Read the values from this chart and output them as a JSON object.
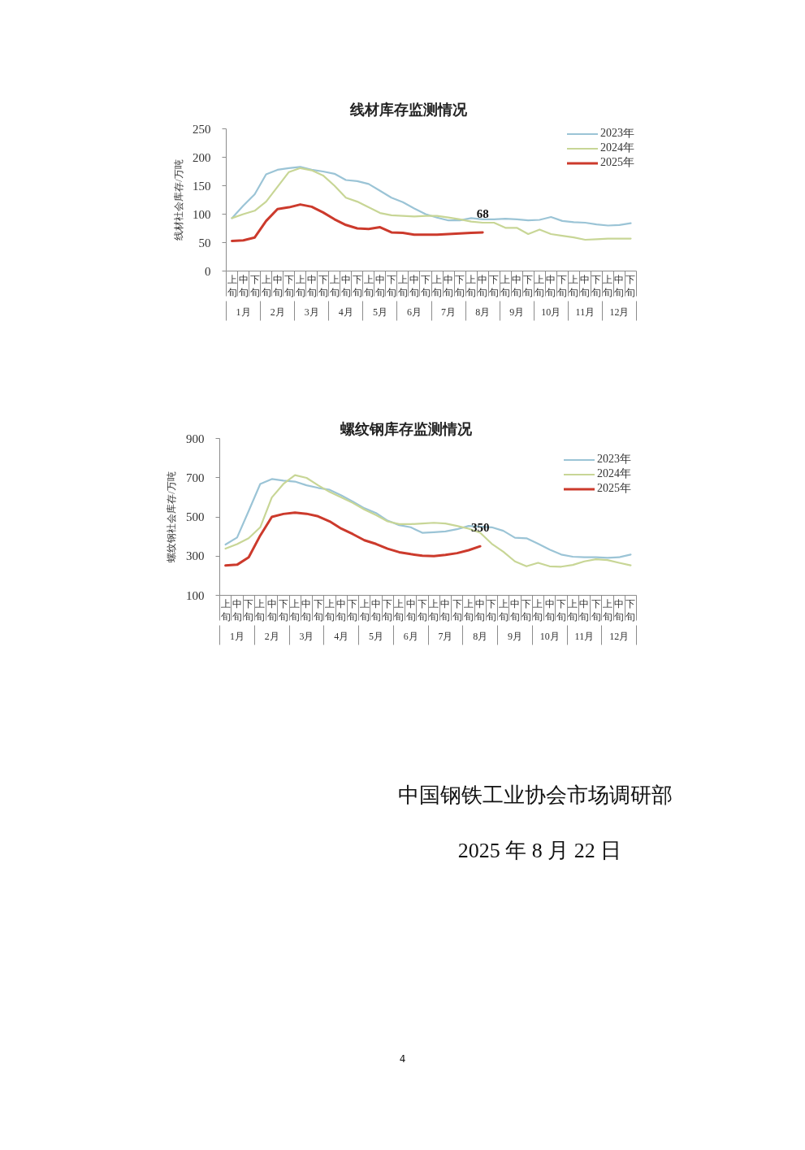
{
  "chart_data": [
    {
      "type": "line",
      "title": "线材库存监测情况",
      "ylabel": "线材社会库存/万吨",
      "categories": [
        [
          "1月",
          "上旬"
        ],
        [
          null,
          "中旬"
        ],
        [
          null,
          "下旬"
        ],
        [
          "2月",
          "上旬"
        ],
        [
          null,
          "中旬"
        ],
        [
          null,
          "下旬"
        ],
        [
          "3月",
          "上旬"
        ],
        [
          null,
          "中旬"
        ],
        [
          null,
          "下旬"
        ],
        [
          "4月",
          "上旬"
        ],
        [
          null,
          "中旬"
        ],
        [
          null,
          "下旬"
        ],
        [
          "5月",
          "上旬"
        ],
        [
          null,
          "中旬"
        ],
        [
          null,
          "下旬"
        ],
        [
          "6月",
          "上旬"
        ],
        [
          null,
          "中旬"
        ],
        [
          null,
          "下旬"
        ],
        [
          "7月",
          "上旬"
        ],
        [
          null,
          "中旬"
        ],
        [
          null,
          "下旬"
        ],
        [
          "8月",
          "上旬"
        ],
        [
          null,
          "中旬"
        ],
        [
          null,
          "下旬"
        ],
        [
          "9月",
          "上旬"
        ],
        [
          null,
          "中旬"
        ],
        [
          null,
          "下旬"
        ],
        [
          "10月",
          "上旬"
        ],
        [
          null,
          "中旬"
        ],
        [
          null,
          "下旬"
        ],
        [
          "11月",
          "上旬"
        ],
        [
          null,
          "中旬"
        ],
        [
          null,
          "下旬"
        ],
        [
          "12月",
          "上旬"
        ],
        [
          null,
          "中旬"
        ],
        [
          null,
          "下旬"
        ]
      ],
      "series": [
        {
          "name": "2023年",
          "color": "#9bc4d6",
          "values": [
            93,
            115,
            135,
            170,
            178,
            181,
            183,
            178,
            175,
            171,
            160,
            158,
            153,
            141,
            129,
            121,
            110,
            100,
            94,
            89,
            89,
            93,
            91,
            91,
            92,
            91,
            89,
            90,
            95,
            88,
            86,
            85,
            82,
            80,
            81,
            84
          ]
        },
        {
          "name": "2024年",
          "color": "#c8d696",
          "values": [
            93,
            100,
            106,
            122,
            148,
            174,
            181,
            177,
            168,
            150,
            129,
            122,
            112,
            102,
            98,
            97,
            96,
            97,
            97,
            94,
            91,
            87,
            85,
            85,
            76,
            76,
            65,
            73,
            65,
            62,
            59,
            55,
            56,
            57,
            57,
            57
          ]
        },
        {
          "name": "2025年",
          "color": "#cc3a2c",
          "values": [
            53,
            54,
            59,
            88,
            109,
            112,
            117,
            113,
            103,
            91,
            81,
            75,
            74,
            77,
            68,
            67,
            64,
            64,
            64,
            65,
            66,
            67,
            68,
            null,
            null,
            null,
            null,
            null,
            null,
            null,
            null,
            null,
            null,
            null,
            null,
            null
          ],
          "value_labels": [
            null,
            null,
            null,
            null,
            null,
            null,
            null,
            null,
            null,
            null,
            null,
            null,
            null,
            null,
            null,
            null,
            null,
            null,
            null,
            null,
            null,
            null,
            "68",
            null,
            null,
            null,
            null,
            null,
            null,
            null,
            null,
            null,
            null,
            null,
            null,
            null
          ]
        }
      ],
      "ylim": [
        0,
        250
      ],
      "yticks": [
        0,
        50,
        100,
        150,
        200,
        250
      ],
      "legend": "top right"
    },
    {
      "type": "line",
      "title": "螺纹钢库存监测情况",
      "ylabel": "螺纹钢社会库存/万吨",
      "categories": [
        [
          "1月",
          "上旬"
        ],
        [
          null,
          "中旬"
        ],
        [
          null,
          "下旬"
        ],
        [
          "2月",
          "上旬"
        ],
        [
          null,
          "中旬"
        ],
        [
          null,
          "下旬"
        ],
        [
          "3月",
          "上旬"
        ],
        [
          null,
          "中旬"
        ],
        [
          null,
          "下旬"
        ],
        [
          "4月",
          "上旬"
        ],
        [
          null,
          "中旬"
        ],
        [
          null,
          "下旬"
        ],
        [
          "5月",
          "上旬"
        ],
        [
          null,
          "中旬"
        ],
        [
          null,
          "下旬"
        ],
        [
          "6月",
          "上旬"
        ],
        [
          null,
          "中旬"
        ],
        [
          null,
          "下旬"
        ],
        [
          "7月",
          "上旬"
        ],
        [
          null,
          "中旬"
        ],
        [
          null,
          "下旬"
        ],
        [
          "8月",
          "上旬"
        ],
        [
          null,
          "中旬"
        ],
        [
          null,
          "下旬"
        ],
        [
          "9月",
          "上旬"
        ],
        [
          null,
          "中旬"
        ],
        [
          null,
          "下旬"
        ],
        [
          "10月",
          "上旬"
        ],
        [
          null,
          "中旬"
        ],
        [
          null,
          "下旬"
        ],
        [
          "11月",
          "上旬"
        ],
        [
          null,
          "中旬"
        ],
        [
          null,
          "下旬"
        ],
        [
          "12月",
          "上旬"
        ],
        [
          null,
          "中旬"
        ],
        [
          null,
          "下旬"
        ]
      ],
      "series": [
        {
          "name": "2023年",
          "color": "#9bc4d6",
          "values": [
            359,
            395,
            530,
            668,
            693,
            685,
            680,
            661,
            648,
            638,
            610,
            578,
            544,
            520,
            481,
            458,
            447,
            419,
            422,
            426,
            437,
            454,
            450,
            447,
            429,
            394,
            391,
            363,
            333,
            308,
            297,
            294,
            294,
            291,
            294,
            308
          ]
        },
        {
          "name": "2024年",
          "color": "#c8d696",
          "values": [
            338,
            361,
            391,
            447,
            599,
            668,
            713,
            699,
            661,
            627,
            599,
            571,
            537,
            509,
            477,
            463,
            463,
            466,
            470,
            466,
            454,
            440,
            419,
            363,
            322,
            273,
            248,
            266,
            248,
            246,
            255,
            273,
            284,
            280,
            266,
            253
          ]
        },
        {
          "name": "2025年",
          "color": "#cc3a2c",
          "values": [
            252,
            256,
            294,
            405,
            500,
            515,
            522,
            516,
            503,
            477,
            440,
            412,
            381,
            362,
            338,
            320,
            310,
            302,
            300,
            306,
            315,
            330,
            350,
            null,
            null,
            null,
            null,
            null,
            null,
            null,
            null,
            null,
            null,
            null,
            null,
            null
          ],
          "value_labels": [
            null,
            null,
            null,
            null,
            null,
            null,
            null,
            null,
            null,
            null,
            null,
            null,
            null,
            null,
            null,
            null,
            null,
            null,
            null,
            null,
            null,
            null,
            "350",
            null,
            null,
            null,
            null,
            null,
            null,
            null,
            null,
            null,
            null,
            null,
            null,
            null
          ]
        }
      ],
      "ylim": [
        100,
        900
      ],
      "yticks": [
        100,
        300,
        500,
        700,
        900
      ],
      "legend": "top right"
    },
    {
      "type": "other",
      "annotations": [
        "中国钢铁工业协会市场调研部",
        "2025 年 8 月 22 日",
        "4"
      ]
    }
  ]
}
